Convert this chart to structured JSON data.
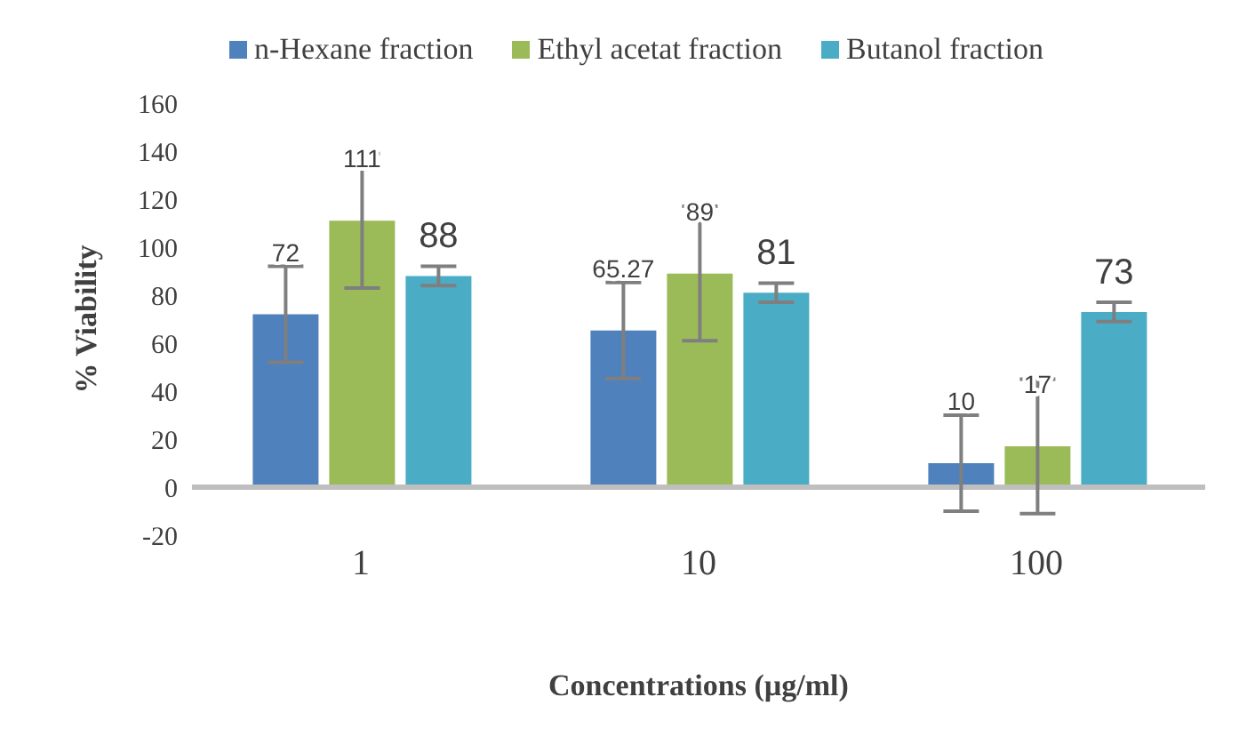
{
  "chart_data": {
    "type": "bar",
    "xlabel": "Concentrations (µg/ml)",
    "ylabel": "%  Viability",
    "categories": [
      "1",
      "10",
      "100"
    ],
    "series": [
      {
        "name": "n-Hexane fraction",
        "color": "#4f81bd",
        "values": [
          72,
          65.27,
          10
        ],
        "errors": [
          20,
          20,
          20
        ]
      },
      {
        "name": "Ethyl acetat fraction",
        "color": "#9bbb59",
        "values": [
          111,
          89,
          17
        ],
        "errors": [
          28,
          28,
          28
        ]
      },
      {
        "name": "Butanol fraction",
        "color": "#4bacc6",
        "values": [
          88,
          81,
          73
        ],
        "errors": [
          4,
          4,
          4
        ]
      }
    ],
    "ylim": [
      -20,
      160
    ],
    "yticks": [
      -20,
      0,
      20,
      40,
      60,
      80,
      100,
      120,
      140,
      160
    ],
    "grid": false,
    "legend": "top",
    "data_labels": true
  }
}
